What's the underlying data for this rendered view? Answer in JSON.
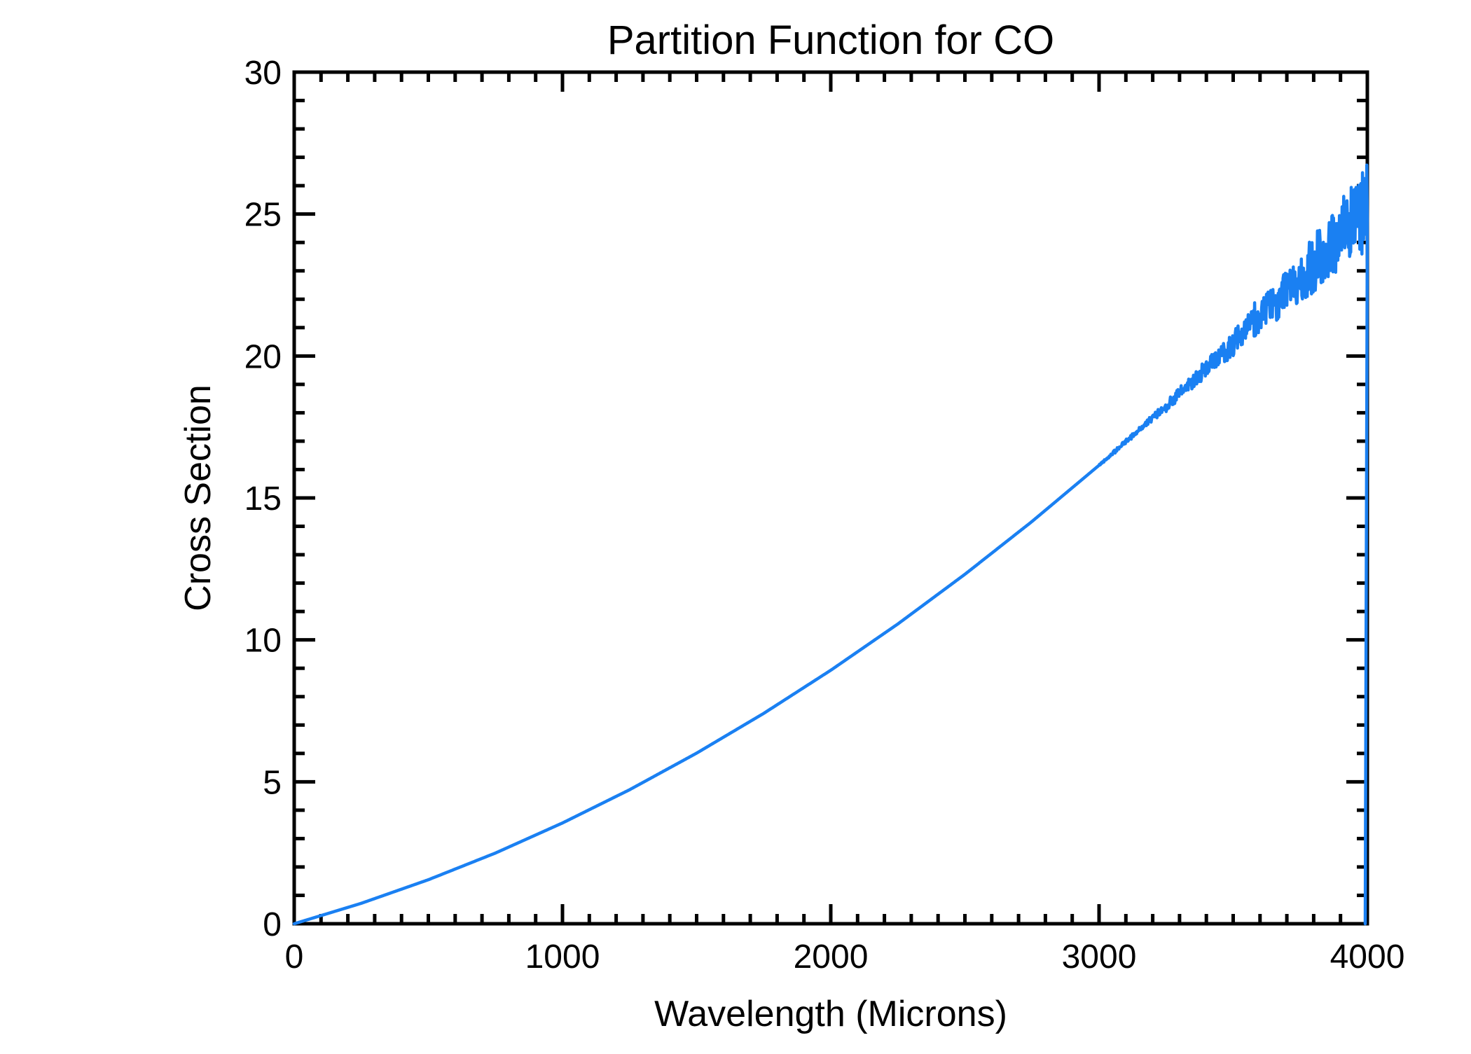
{
  "figure": {
    "background_color": "#ffffff",
    "axis_color": "#000000",
    "accent_color": "#1a80f2"
  },
  "chart_data": {
    "type": "line",
    "title": "Partition Function for CO",
    "xlabel": "Wavelength (Microns)",
    "ylabel": "Cross Section",
    "xlim": [
      0,
      4000
    ],
    "ylim": [
      0,
      30
    ],
    "x_ticks": [
      0,
      1000,
      2000,
      3000,
      4000
    ],
    "y_ticks": [
      0,
      5,
      10,
      15,
      20,
      25,
      30
    ],
    "x_minor_step": 100,
    "y_minor_step": 1,
    "grid": false,
    "legend": null,
    "series": [
      {
        "name": "CO partition function",
        "color": "#1a80f2",
        "base_points": [
          [
            0,
            0.0
          ],
          [
            250,
            0.72
          ],
          [
            500,
            1.55
          ],
          [
            750,
            2.49
          ],
          [
            1000,
            3.55
          ],
          [
            1250,
            4.72
          ],
          [
            1500,
            6.01
          ],
          [
            1750,
            7.41
          ],
          [
            2000,
            8.93
          ],
          [
            2250,
            10.56
          ],
          [
            2500,
            12.31
          ],
          [
            2750,
            14.17
          ],
          [
            3000,
            16.15
          ],
          [
            3250,
            18.24
          ],
          [
            3500,
            20.44
          ],
          [
            3750,
            22.76
          ],
          [
            4000,
            25.19
          ]
        ],
        "noise_envelope": [
          [
            3000,
            0.03
          ],
          [
            3200,
            0.12
          ],
          [
            3400,
            0.32
          ],
          [
            3600,
            0.55
          ],
          [
            3800,
            1.0
          ],
          [
            4000,
            1.6
          ]
        ],
        "peak_value": 27,
        "end_drop_to": 0
      }
    ],
    "noise_render": {
      "seed": 42,
      "step": 2,
      "spike_probability": 0.02,
      "spike_gain": 1.6
    }
  }
}
